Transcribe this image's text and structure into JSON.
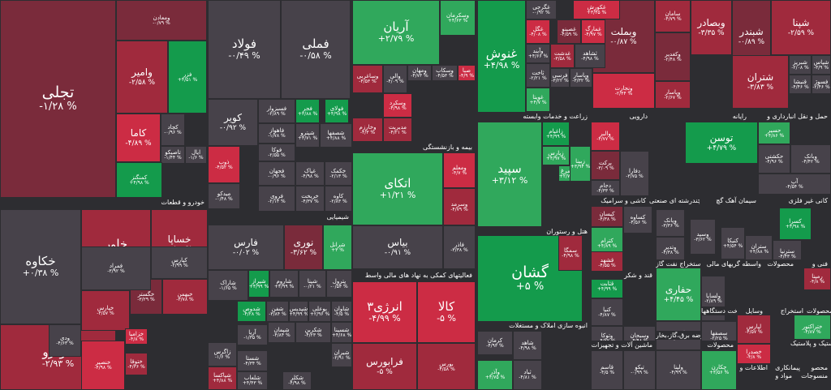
{
  "colors": {
    "pos_strong": "#149b4c",
    "pos_light": "#30a85c",
    "neg_strong": "#cc2c44",
    "neg_mid": "#a02a3d",
    "neg_light": "#7a2b3b",
    "neutral": "#47424a"
  },
  "chart_data": {
    "type": "treemap",
    "sectors": [
      {
        "label": "خودرو و قطعات"
      },
      {
        "label": "شیمیایی"
      },
      {
        "label": "بیمه و بازنشستگی"
      },
      {
        "label": "زراعت و خدمات وابسته"
      },
      {
        "label": "دارویی"
      },
      {
        "label": "رایانه"
      },
      {
        "label": "حمل و نقل انبارداری و"
      },
      {
        "label": "فعالیتهای کمکی به نهاد های مالی واسط"
      },
      {
        "label": "هتل و رستوران"
      },
      {
        "label": "کاشی و سرامیک"
      },
      {
        "label": "چندرشته ای صنعتی"
      },
      {
        "label": "سیمان آهک گچ"
      },
      {
        "label": "کانی غیر فلزی"
      },
      {
        "label": "استخراج نفت گاز"
      },
      {
        "label": "واسطه گریهای مالی"
      },
      {
        "label": "محصولات"
      },
      {
        "label": "فنی و"
      },
      {
        "label": "قند و شکر"
      },
      {
        "label": "انبوه سازی املاک و مستغلات"
      },
      {
        "label": "ماشین آلات و تجهیزات"
      },
      {
        "label": "عرضه برق،گاز،بخار"
      },
      {
        "label": "ساخت دستگاهها"
      },
      {
        "label": "وسایل"
      },
      {
        "label": "سایر محصولات"
      },
      {
        "label": "استخراج"
      },
      {
        "label": "لاستیک و پلاستیک"
      },
      {
        "label": "محصولات"
      },
      {
        "label": "اطلاعات و"
      },
      {
        "label": "محصو"
      },
      {
        "label": "مواد و"
      },
      {
        "label": "منسوجات"
      },
      {
        "label": "پیمانکاری"
      }
    ],
    "tiles": [
      {
        "name": "تجلی",
        "value": "-۱/۲۸ %"
      },
      {
        "name": "ومعادن",
        "value": "-۰/۷۹ %"
      },
      {
        "name": "وامیر",
        "value": "-۲/۵۸ %"
      },
      {
        "name": "فزر",
        "value": "+۴/۵۱ %"
      },
      {
        "name": "کاما",
        "value": "-۴/۸۹ %"
      },
      {
        "name": "کچاد",
        "value": "-۰/۹۶ %"
      },
      {
        "name": "تاصیکو",
        "value": "-۱/۴۴ %"
      },
      {
        "name": "ایال",
        "value": "-۱/۶ %"
      },
      {
        "name": "کمنگنز",
        "value": "+۴/۹۸ %"
      },
      {
        "name": "فولاد",
        "value": "-۰/۴۹ %"
      },
      {
        "name": "فملی",
        "value": "-۰/۵۸ %"
      },
      {
        "name": "آریان",
        "value": "+۲/۷۹ %"
      },
      {
        "name": "وسکرمان",
        "value": "+۴/۶۳ %"
      },
      {
        "name": "وساغربی",
        "value": "-۴/۵۳ %"
      },
      {
        "name": "والی",
        "value": "-۴/۰۹ %"
      },
      {
        "name": "ومهان",
        "value": "-۴/۷۳ %"
      },
      {
        "name": "وسکاب",
        "value": "-۴/۵۳ %"
      },
      {
        "name": "صبا",
        "value": "-۴/۹ %"
      },
      {
        "name": "وسکرد",
        "value": "-۴/۹۸ %"
      },
      {
        "name": "وخارزم",
        "value": "-۴/۳ %"
      },
      {
        "name": "مدیریت",
        "value": "-۴/۲۱ %"
      },
      {
        "name": "کویر",
        "value": "-۰/۹۲ %"
      },
      {
        "name": "فسبزوار",
        "value": "-۲/۸۹ %"
      },
      {
        "name": "فجر",
        "value": "+۳/۸۸ %"
      },
      {
        "name": "فولای",
        "value": "+۴/۹۸ %"
      },
      {
        "name": "فاهواز",
        "value": "-۱/۷۸ %"
      },
      {
        "name": "فوکا",
        "value": "-۲/۵۵ %"
      },
      {
        "name": "فجهان",
        "value": "-۰/۹۶ %"
      },
      {
        "name": "ذوب",
        "value": "-۴/۵۲ %"
      },
      {
        "name": "میدکو",
        "value": "-۰/۴۸ %"
      },
      {
        "name": "فروی",
        "value": "-۲/۱۴ %"
      },
      {
        "name": "غنوش",
        "value": "+۴/۹۸ %"
      },
      {
        "name": "وبملت",
        "value": "-۰/۸۷ %"
      },
      {
        "name": "وبصادر",
        "value": "-۳/۳۵ %"
      },
      {
        "name": "شبندر",
        "value": "-۰/۸۹ %"
      },
      {
        "name": "شپنا",
        "value": "-۲/۵۹ %"
      },
      {
        "name": "سامان",
        "value": "-۴/۷۹ %"
      },
      {
        "name": "وکغدیر",
        "value": "-۲/۴۸ %"
      },
      {
        "name": "ونجارت",
        "value": "-۲/۴۴ %"
      },
      {
        "name": "وپاسار",
        "value": "-۲/۶۷ %"
      },
      {
        "name": "شتران",
        "value": "-۳/۸۳ %"
      },
      {
        "name": "شبریز",
        "value": "-۲/۰۸ %"
      },
      {
        "name": "شپاس",
        "value": "-۳/۹ %"
      },
      {
        "name": "غگرجی",
        "value": "-۰/۹۲ %"
      },
      {
        "name": "غکورش",
        "value": "+۳/۴۵ %"
      },
      {
        "name": "غگل",
        "value": "-۴/۰۸ %"
      },
      {
        "name": "غصینو",
        "value": "-۴/۵۹ %"
      },
      {
        "name": "غمارگ",
        "value": "-۴/۹۷ %"
      },
      {
        "name": "غدشت",
        "value": "-۳/۵۸ %"
      },
      {
        "name": "غویتا",
        "value": "+۴/۷ %"
      },
      {
        "name": "خودرو",
        "value": "-۲/۹۳ %"
      },
      {
        "name": "خکاوه",
        "value": "+۰/۳۸ %"
      },
      {
        "name": "خاور",
        "value": "-۲/۹۸ %"
      },
      {
        "name": "خساپا",
        "value": "-۳/۶۲ %"
      },
      {
        "name": "خگستر",
        "value": "-۳/۲۹ %"
      },
      {
        "name": "خبهمن",
        "value": "-۳/۷۸ %"
      },
      {
        "name": "خپارس",
        "value": "-۳/۵۷ %"
      },
      {
        "name": "خزامیا",
        "value": "-۴/۸ %"
      },
      {
        "name": "ختوقا",
        "value": "-۴/۳۶ %"
      },
      {
        "name": "خنصیر",
        "value": "-۴/۹۸ %"
      },
      {
        "name": "فارس",
        "value": "-۰/۰۲ %"
      },
      {
        "name": "نوری",
        "value": "-۳/۶۲ %"
      },
      {
        "name": "شرانل",
        "value": "+۳ %"
      },
      {
        "name": "شاراک",
        "value": "-۱/۶۵ %"
      },
      {
        "name": "شیراز",
        "value": "+۴/۹۹ %"
      },
      {
        "name": "شاروم",
        "value": "+۴/۹۹ %"
      },
      {
        "name": "شپنا",
        "value": "-۰/۲۱ %"
      },
      {
        "name": "پترول",
        "value": "-۰/۵۴ %"
      },
      {
        "name": "زاگرس",
        "value": "-۱/۶ %"
      },
      {
        "name": "آریا",
        "value": "-۱/۳۵ %"
      },
      {
        "name": "شستا",
        "value": "-۴/۳۴ %"
      },
      {
        "name": "شپاکسا",
        "value": "+۴/۸۸ %"
      },
      {
        "name": "شدوص",
        "value": "-۴/۲۸ %"
      },
      {
        "name": "شفن",
        "value": "-۳/۸۴ %"
      },
      {
        "name": "شپدیس",
        "value": "+۴/۹۹ %"
      },
      {
        "name": "بوعلی",
        "value": "+۲/۹۶ %"
      },
      {
        "name": "شاوان",
        "value": "-۴/۵ %"
      },
      {
        "name": "شسینا",
        "value": "+۴/۶۸ %"
      },
      {
        "name": "شلعاب",
        "value": "+۴/۴۳ %"
      },
      {
        "name": "شکلر",
        "value": "-۴/۹۸ %"
      },
      {
        "name": "شپمان",
        "value": "-۴/۸۴ %"
      },
      {
        "name": "شکربن",
        "value": "-۴/۲۳ %"
      },
      {
        "name": "شیران",
        "value": "-۲/۹۱ %"
      },
      {
        "name": "اتکای",
        "value": "+۱/۲۱ %"
      },
      {
        "name": "ومعلم",
        "value": "-۴/۷ %"
      },
      {
        "name": "بیاس",
        "value": "-۰/۹۱ %"
      },
      {
        "name": "وسرمد",
        "value": "-۴/۷۹ %"
      },
      {
        "name": "سپید",
        "value": "+۳/۱۲ %"
      },
      {
        "name": "زاغیام",
        "value": "+۴/۹۹ %"
      },
      {
        "name": "زپارس",
        "value": "+۴/۹۷ %"
      },
      {
        "name": "سیمرغ",
        "value": "+۲/۷۸ %"
      },
      {
        "name": "زبینا",
        "value": "+۳/۹۴ %"
      },
      {
        "name": "والبر",
        "value": "-۴/۷۷ %"
      },
      {
        "name": "برکت",
        "value": "-۳/۰۹ %"
      },
      {
        "name": "دجام",
        "value": "-۴/۳۳ %"
      },
      {
        "name": "دفارا",
        "value": "-۳/۷۵ %"
      },
      {
        "name": "توسن",
        "value": "+۴/۷۹ %"
      },
      {
        "name": "حسیر",
        "value": "+۴/۸۶ %"
      },
      {
        "name": "حکشتی",
        "value": "-۴/۹۶ %"
      },
      {
        "name": "انرژی۳",
        "value": "-۴/۹۹ %"
      },
      {
        "name": "کالا",
        "value": "-۵ %"
      },
      {
        "name": "فرابورس",
        "value": "-۵ %"
      },
      {
        "name": "بورس",
        "value": "-۴/۵۸ %"
      },
      {
        "name": "گشان",
        "value": "+۵ %"
      },
      {
        "name": "سمگا",
        "value": "-۴/۹۸ %"
      },
      {
        "name": "کترام",
        "value": "+۴/۸۹ %"
      },
      {
        "name": "کساوه",
        "value": "-۴/۵۶ %"
      },
      {
        "name": "کیسان",
        "value": "-۴/۳۸ %"
      },
      {
        "name": "کنیا",
        "value": "-۴/۸۷ %"
      },
      {
        "name": "وتوکا",
        "value": "-۴/۲۲ %"
      },
      {
        "name": "وپانک",
        "value": "-۳/۳۶ %"
      },
      {
        "name": "وتدیر",
        "value": "-۴/۳۸ %"
      },
      {
        "name": "وسید",
        "value": "-۳/۶۲ %"
      },
      {
        "name": "کسرا",
        "value": "+۴/۹۸ %"
      },
      {
        "name": "قثابت",
        "value": "+۴/۹۹ %"
      },
      {
        "name": "قشهد",
        "value": "-۴/۵۵ %"
      },
      {
        "name": "قاسم",
        "value": "-۴/۵ %"
      },
      {
        "name": "کرمان",
        "value": "-۴/۹۳ %"
      },
      {
        "name": "شاهد",
        "value": "-۴/۹۸ %"
      },
      {
        "name": "ثباد",
        "value": "-۴/۸۱ %"
      },
      {
        "name": "وآذر",
        "value": "+۴/۷۵ %"
      },
      {
        "name": "حفاری",
        "value": "+۴/۴۵ %"
      },
      {
        "name": "ولساپا",
        "value": "-۲/۸۹ %"
      },
      {
        "name": "لپارس",
        "value": "-۴/۵۷ %"
      },
      {
        "name": "ختراکتور",
        "value": "-۴/۸۷ %"
      },
      {
        "name": "خصدرا",
        "value": "-۴/۸ %"
      },
      {
        "name": "رمپنا",
        "value": "-۴/۸ %"
      },
      {
        "name": "تیکو",
        "value": "-۰/۹۹ %"
      },
      {
        "name": "چکارن",
        "value": "+۴/۵۶ %"
      },
      {
        "name": "ولپنا",
        "value": "-۴/۹۹ %"
      },
      {
        "name": "کنیکا",
        "value": "+۴/۵۴ %"
      },
      {
        "name": "ستران",
        "value": "+۴/۸۸ %"
      },
      {
        "name": "سترنیا",
        "value": "-۴/۴۳ %"
      },
      {
        "name": "سصفها",
        "value": "-۲/۲۵ %"
      },
      {
        "name": "وسبحان",
        "value": "-۴/۹۸ %"
      },
      {
        "name": "وکبهمن",
        "value": "-۰/۹۱ %"
      },
      {
        "name": "وآیند",
        "value": "+۴/۶۶ %"
      },
      {
        "name": "ثاخت",
        "value": "-۲/۲۱ %"
      },
      {
        "name": "ثشاهد",
        "value": "-۴/۹۸ %"
      },
      {
        "name": "وپاسار",
        "value": "-۳/۳۲ %"
      },
      {
        "name": "فرسی",
        "value": "-۳/۲۲ %"
      },
      {
        "name": "فسوژ",
        "value": "-۲/۴۶ %"
      },
      {
        "name": "قنیشا",
        "value": "-۴/۴۶ %"
      },
      {
        "name": "شپترو",
        "value": "+۴/۷۱ %"
      },
      {
        "name": "شصفها",
        "value": "+۴/۸۸ %"
      },
      {
        "name": "غپاک",
        "value": "-۴/۹۸ %"
      },
      {
        "name": "خکمک",
        "value": "-۲/۱۳ %"
      },
      {
        "name": "خریخت",
        "value": "-۴/۳۷ %"
      },
      {
        "name": "کاوه",
        "value": "-۲/۸۳ %"
      },
      {
        "name": "کپارس",
        "value": "-۲/۹۹ %"
      },
      {
        "name": "فمراد",
        "value": "-۳/۹۲ %"
      },
      {
        "name": "ودی",
        "value": "-۴/۶۳ %"
      },
      {
        "name": "فاذر",
        "value": "-۳/۳۸ %"
      },
      {
        "name": "وبانک",
        "value": "-۴/۴۲ %"
      },
      {
        "name": "آپ",
        "value": "-۴/۵۴ %"
      }
    ]
  }
}
